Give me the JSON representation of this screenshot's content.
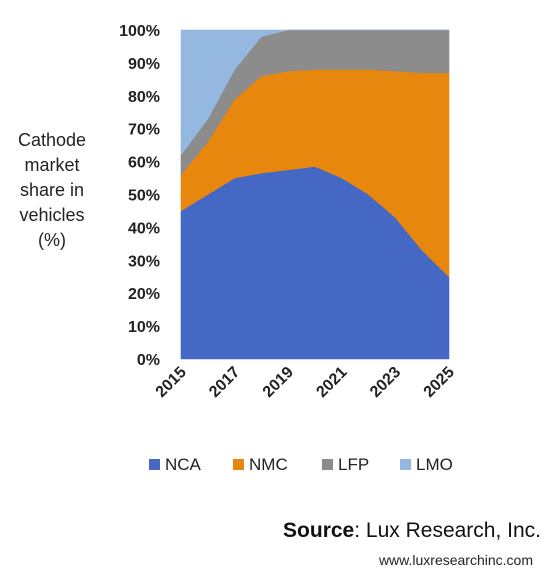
{
  "chart_data": {
    "type": "area",
    "stacked": true,
    "ylabel": "Cathode market share in vehicles (%)",
    "ylabel_lines": [
      "Cathode",
      "market",
      "share in",
      "vehicles",
      "(%)"
    ],
    "ylim": [
      0,
      100
    ],
    "yticks": [
      0,
      10,
      20,
      30,
      40,
      50,
      60,
      70,
      80,
      90,
      100
    ],
    "ytick_labels": [
      "0%",
      "10%",
      "20%",
      "30%",
      "40%",
      "50%",
      "60%",
      "70%",
      "80%",
      "90%",
      "100%"
    ],
    "x": [
      2015,
      2016,
      2017,
      2018,
      2019,
      2020,
      2021,
      2022,
      2023,
      2024,
      2025
    ],
    "xtick_labels": [
      "2015",
      "2017",
      "2019",
      "2021",
      "2023",
      "2025"
    ],
    "xtick_values": [
      2015,
      2017,
      2019,
      2021,
      2023,
      2025
    ],
    "legend_position": "bottom",
    "series": [
      {
        "name": "NCA",
        "color": "#4668c5",
        "values": [
          45,
          50,
          55,
          56.5,
          57.5,
          58.5,
          55,
          50,
          43,
          33,
          25
        ]
      },
      {
        "name": "NMC",
        "color": "#e8870e",
        "values": [
          11,
          16,
          24,
          29.5,
          30,
          29.5,
          33,
          38,
          44.5,
          54,
          62
        ]
      },
      {
        "name": "LFP",
        "color": "#8c8c8c",
        "values": [
          6,
          7,
          9,
          12,
          12.5,
          12,
          12,
          12,
          12.5,
          13,
          13
        ]
      },
      {
        "name": "LMO",
        "color": "#94b8e0",
        "values": [
          38,
          27,
          12,
          2,
          0,
          0,
          0,
          0,
          0,
          0,
          0
        ]
      }
    ]
  },
  "source": {
    "label": "Source",
    "text": ": Lux Research, Inc.",
    "url": "www.luxresearchinc.com"
  }
}
